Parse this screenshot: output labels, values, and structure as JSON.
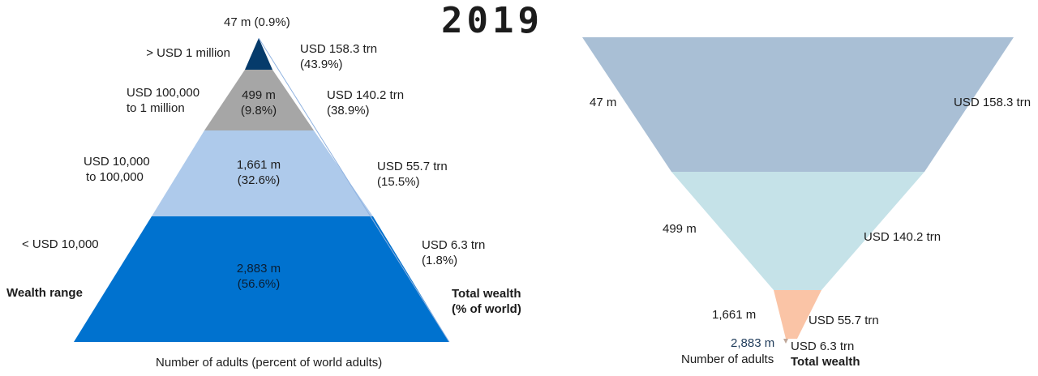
{
  "year": "2019",
  "chart_data": [
    {
      "type": "pyramid",
      "tiers": [
        {
          "wealth_range": "> USD 1 million",
          "adults": "47 m (0.9%)",
          "adults_m": 47,
          "adults_pct": 0.9,
          "wealth": "USD 158.3 trn",
          "wealth_pct": "(43.9%)",
          "wealth_trn": 158.3,
          "color": "#063b6b"
        },
        {
          "wealth_range": [
            "USD 100,000",
            "to 1 million"
          ],
          "adults": [
            "499 m",
            "(9.8%)"
          ],
          "adults_m": 499,
          "adults_pct": 9.8,
          "wealth": "USD 140.2 trn",
          "wealth_pct": "(38.9%)",
          "wealth_trn": 140.2,
          "color": "#a6a6a6"
        },
        {
          "wealth_range": [
            "USD 10,000",
            "to 100,000"
          ],
          "adults": [
            "1,661 m",
            "(32.6%)"
          ],
          "adults_m": 1661,
          "adults_pct": 32.6,
          "wealth": "USD 55.7 trn",
          "wealth_pct": "(15.5%)",
          "wealth_trn": 55.7,
          "color": "#aecaeb"
        },
        {
          "wealth_range": "< USD 10,000",
          "adults": [
            "2,883 m",
            "(56.6%)"
          ],
          "adults_m": 2883,
          "adults_pct": 56.6,
          "wealth": "USD 6.3 trn",
          "wealth_pct": "(1.8%)",
          "wealth_trn": 6.3,
          "color": "#0072cf"
        }
      ],
      "left_heading": "Wealth range",
      "right_heading": [
        "Total wealth",
        "(% of world)"
      ],
      "xlabel": "Number of adults (percent of world adults)"
    },
    {
      "type": "inverted-pyramid",
      "tiers": [
        {
          "adults": "47 m",
          "adults_m": 47,
          "wealth": "USD 158.3 trn",
          "wealth_trn": 158.3,
          "color": "#a9bfd5"
        },
        {
          "adults": "499 m",
          "adults_m": 499,
          "wealth": "USD 140.2 trn",
          "wealth_trn": 140.2,
          "color": "#c5e2e8"
        },
        {
          "adults": "1,661 m",
          "adults_m": 1661,
          "wealth": "USD 55.7 trn",
          "wealth_trn": 55.7,
          "color": "#fac4a6"
        },
        {
          "adults": "2,883 m",
          "adults_m": 2883,
          "wealth": "USD 6.3 trn",
          "wealth_trn": 6.3,
          "color": "#bfa799"
        }
      ],
      "left_footer": "Number of adults",
      "right_footer": "Total wealth"
    }
  ]
}
